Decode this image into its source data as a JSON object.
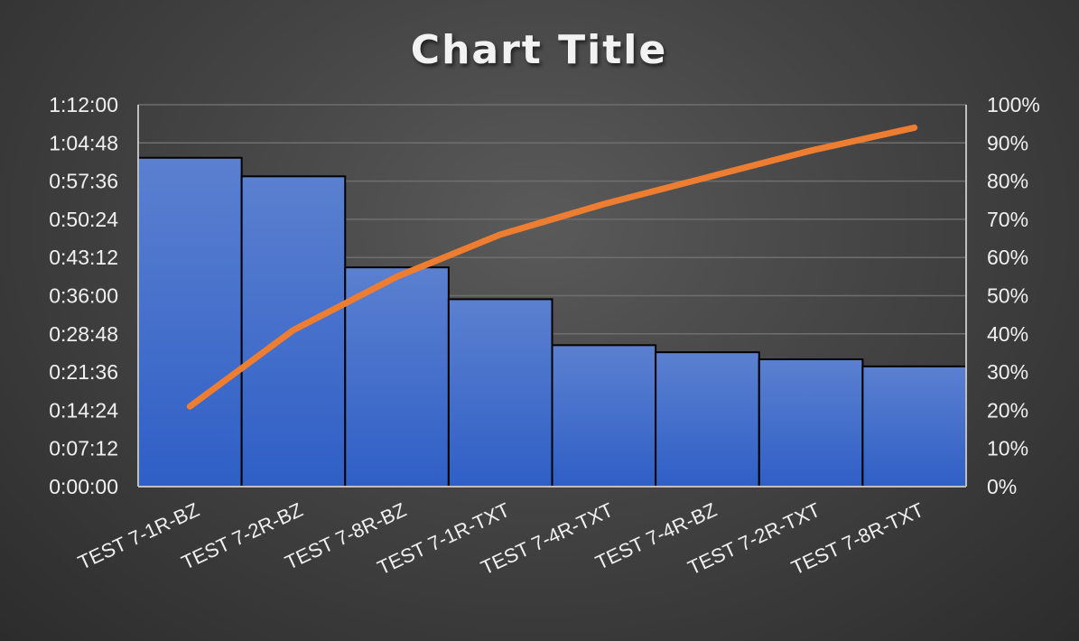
{
  "chart_data": {
    "type": "bar",
    "title": "Chart Title",
    "categories": [
      "TEST 7-1R-BZ",
      "TEST 7-2R-BZ",
      "TEST 7-8R-BZ",
      "TEST 7-1R-TXT",
      "TEST 7-4R-TXT",
      "TEST 7-4R-BZ",
      "TEST 7-2R-TXT",
      "TEST 7-8R-TXT"
    ],
    "series": [
      {
        "type": "bar",
        "axis": "left",
        "unit": "h:mm:ss",
        "values": [
          "1:02:00",
          "0:58:30",
          "0:41:20",
          "0:35:20",
          "0:26:40",
          "0:25:20",
          "0:24:00",
          "0:22:40"
        ],
        "color": "#3d6fd6"
      },
      {
        "type": "line",
        "axis": "right",
        "unit": "percent",
        "values": [
          21,
          41,
          55,
          66,
          74,
          81,
          88,
          94
        ],
        "color": "#ed7d31"
      }
    ],
    "y_left": {
      "ticks": [
        "0:00:00",
        "0:07:12",
        "0:14:24",
        "0:21:36",
        "0:28:48",
        "0:36:00",
        "0:43:12",
        "0:50:24",
        "0:57:36",
        "1:04:48",
        "1:12:00"
      ],
      "range": [
        "0:00:00",
        "1:12:00"
      ]
    },
    "y_right": {
      "ticks": [
        "0%",
        "10%",
        "20%",
        "30%",
        "40%",
        "50%",
        "60%",
        "70%",
        "80%",
        "90%",
        "100%"
      ],
      "range": [
        0,
        100
      ]
    },
    "xlabel": "",
    "ylabel": "",
    "grid": true,
    "legend": "none"
  }
}
